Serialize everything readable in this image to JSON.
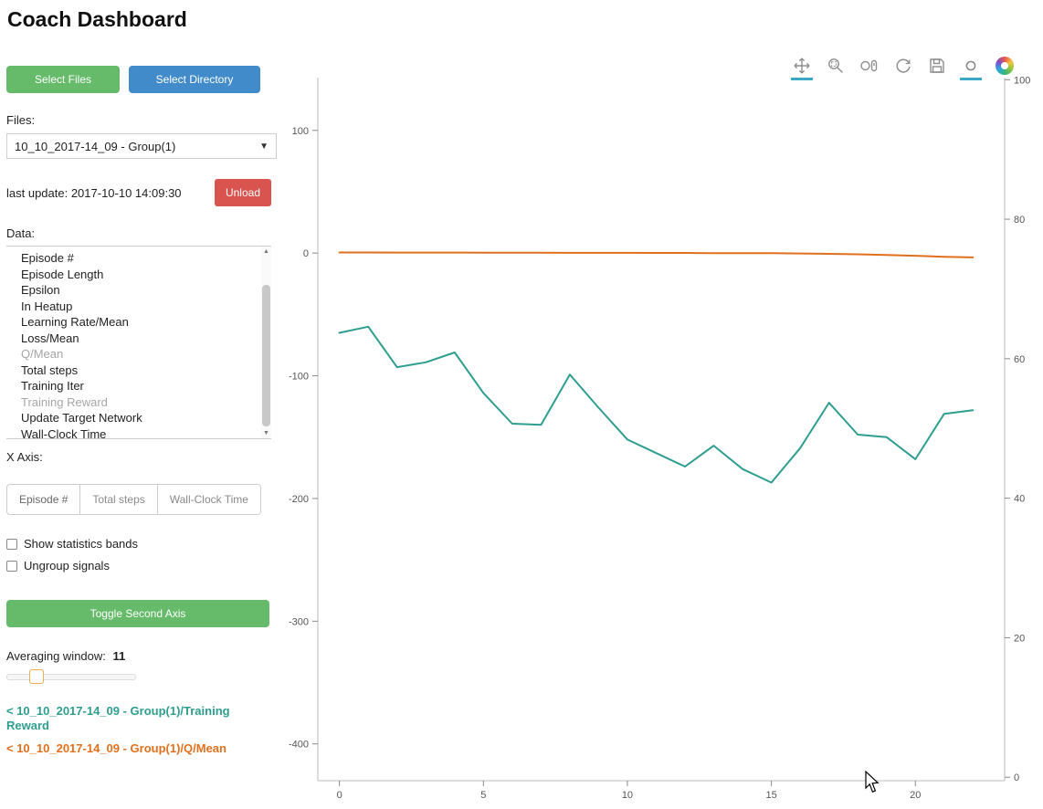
{
  "page": {
    "title": "Coach Dashboard"
  },
  "sidebar": {
    "select_files_label": "Select Files",
    "select_directory_label": "Select Directory",
    "files_label": "Files:",
    "files_selected": "10_10_2017-14_09 - Group(1)",
    "last_update": "last update: 2017-10-10 14:09:30",
    "unload_label": "Unload",
    "data_label": "Data:",
    "data_items": [
      {
        "label": "Episode #",
        "dimmed": false
      },
      {
        "label": "Episode Length",
        "dimmed": false
      },
      {
        "label": "Epsilon",
        "dimmed": false
      },
      {
        "label": "In Heatup",
        "dimmed": false
      },
      {
        "label": "Learning Rate/Mean",
        "dimmed": false
      },
      {
        "label": "Loss/Mean",
        "dimmed": false
      },
      {
        "label": "Q/Mean",
        "dimmed": true
      },
      {
        "label": "Total steps",
        "dimmed": false
      },
      {
        "label": "Training Iter",
        "dimmed": false
      },
      {
        "label": "Training Reward",
        "dimmed": true
      },
      {
        "label": "Update Target Network",
        "dimmed": false
      },
      {
        "label": "Wall-Clock Time",
        "dimmed": false
      }
    ],
    "x_axis_label": "X Axis:",
    "x_axis_options": [
      {
        "label": "Episode #",
        "active": true
      },
      {
        "label": "Total steps",
        "active": false
      },
      {
        "label": "Wall-Clock Time",
        "active": false
      }
    ],
    "checkboxes": [
      {
        "label": "Show statistics bands",
        "checked": false
      },
      {
        "label": "Ungroup signals",
        "checked": false
      }
    ],
    "toggle_second_axis_label": "Toggle Second Axis",
    "averaging_window_label": "Averaging window:",
    "averaging_window_value": "11",
    "legend": [
      {
        "label": "< 10_10_2017-14_09 - Group(1)/Training Reward",
        "color": "#2e9e8f"
      },
      {
        "label": "< 10_10_2017-14_09 - Group(1)/Q/Mean",
        "color": "#e0701e"
      }
    ]
  },
  "toolbar": {
    "icons": [
      {
        "name": "pan-tool-icon",
        "active": true
      },
      {
        "name": "box-zoom-icon",
        "active": false
      },
      {
        "name": "wheel-zoom-icon",
        "active": false
      },
      {
        "name": "reset-icon",
        "active": false
      },
      {
        "name": "save-icon",
        "active": false
      },
      {
        "name": "hover-tool-icon",
        "active": true
      },
      {
        "name": "bokeh-logo-icon",
        "active": false
      }
    ]
  },
  "chart_data": {
    "type": "line",
    "x": [
      0,
      1,
      2,
      3,
      4,
      5,
      6,
      7,
      8,
      9,
      10,
      11,
      12,
      13,
      14,
      15,
      16,
      17,
      18,
      19,
      20,
      21,
      22
    ],
    "series": [
      {
        "name": "10_10_2017-14_09 - Group(1)/Training Reward",
        "color": "#2e9e8f",
        "axis": "left",
        "values": [
          -65,
          -60,
          -93,
          -89,
          -81,
          -114,
          -139,
          -140,
          -99,
          -126,
          -152,
          -163,
          -174,
          -157,
          -176,
          -187,
          -159,
          -122,
          -148,
          -150,
          -168,
          -131,
          -128
        ]
      },
      {
        "name": "10_10_2017-14_09 - Group(1)/Q/Mean",
        "color": "#e0701e",
        "axis": "left",
        "values": [
          0.5,
          0.5,
          0.4,
          0.4,
          0.4,
          0.3,
          0.3,
          0.3,
          0.2,
          0.2,
          0.2,
          0.1,
          0.1,
          0.0,
          0.0,
          -0.1,
          -0.3,
          -0.6,
          -1.0,
          -1.5,
          -2.2,
          -3.0,
          -3.5
        ]
      }
    ],
    "title": "",
    "xlabel": "",
    "ylabel": "",
    "xticks": [
      0,
      5,
      10,
      15,
      20
    ],
    "yticks_left": [
      100,
      0,
      -100,
      -200,
      -300,
      -400
    ],
    "yticks_right": [
      100,
      80,
      60,
      40,
      20,
      0
    ],
    "xlim": [
      -0.75,
      23.1
    ],
    "ylim_left": [
      -430,
      143
    ],
    "ylim_right": [
      -0.5,
      100.3
    ],
    "grid": false,
    "legend_position": "sidebar"
  }
}
